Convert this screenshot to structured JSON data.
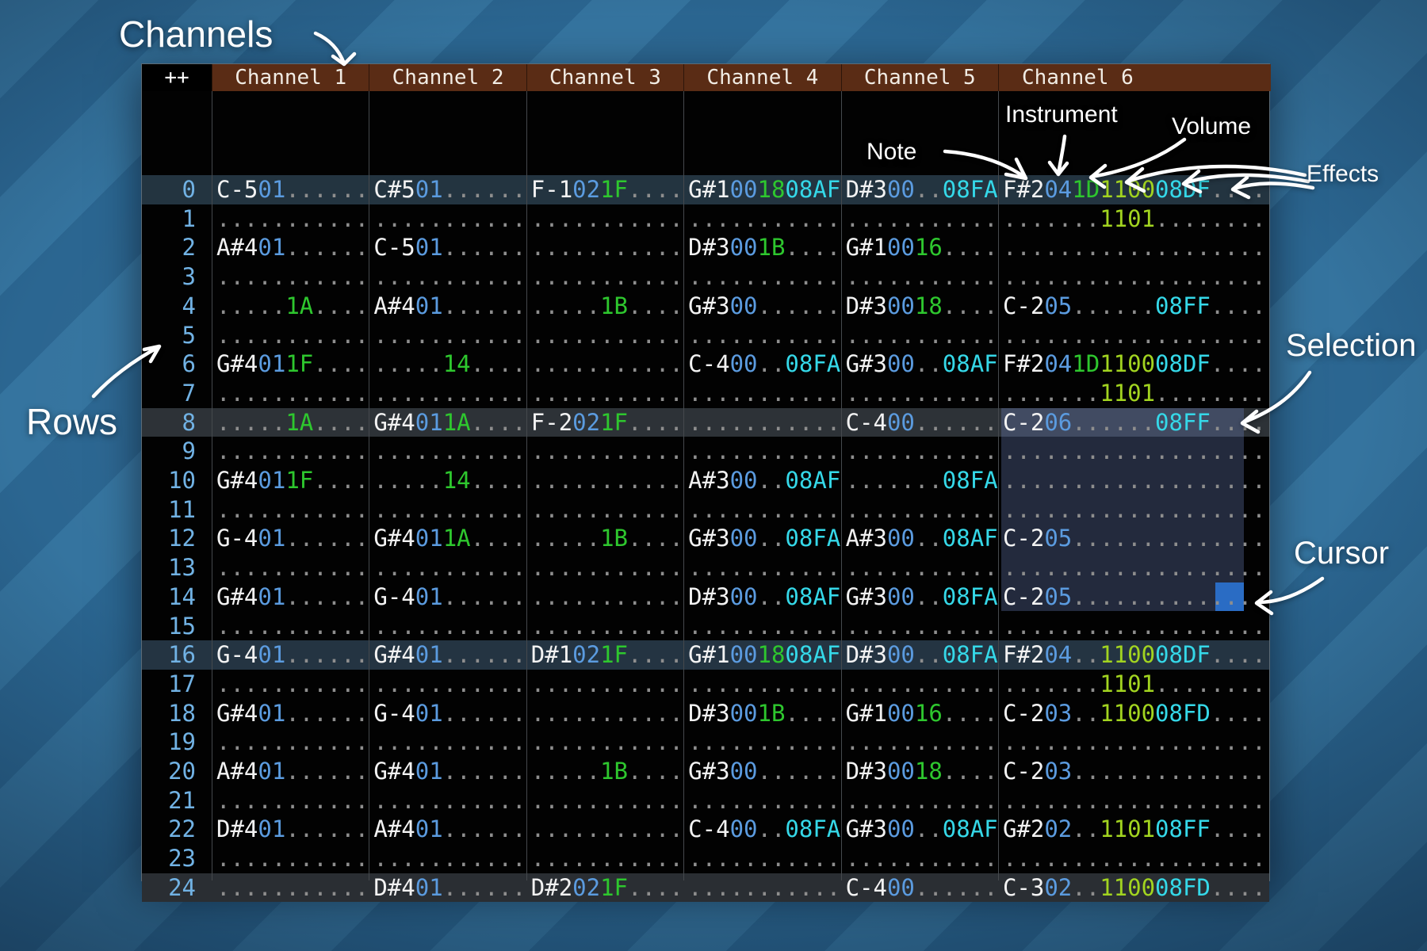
{
  "annotations": {
    "channels": "Channels",
    "rows": "Rows",
    "note": "Note",
    "instrument": "Instrument",
    "volume": "Volume",
    "effects": "Effects",
    "selection": "Selection",
    "cursor": "Cursor"
  },
  "header": {
    "corner": "++",
    "channels": [
      "Channel 1",
      "Channel 2",
      "Channel 3",
      "Channel 4",
      "Channel 5",
      "Channel 6"
    ]
  },
  "colors": {
    "note": "#f2f2f2",
    "instrument": "#5b9bdf",
    "volume": "#2ec72e",
    "effect_primary": "#a2d420",
    "effect_secondary": "#35d8e8",
    "blank_dots": "#8e8e8e",
    "row_number": "#71b2e4",
    "header_bg": "#5a2c15",
    "highlight_row_major": "#233440",
    "highlight_row_mid": "#2d3237",
    "highlight_row_16": "#243442",
    "highlight_row_24": "#2a2e33",
    "selection_fill": "rgba(112,136,198,0.30)",
    "cursor_fill": "#2a6cc4"
  },
  "pattern": {
    "highlight_rows": [
      0,
      8,
      16,
      24
    ],
    "selection": {
      "channel": 6,
      "row_start": 8,
      "row_end": 14
    },
    "cursor": {
      "row": 14,
      "channel": 6,
      "column": "effect3"
    },
    "rows": [
      {
        "n": "0",
        "cells": [
          "C-5|01|..|....",
          "C#5|01|..|....",
          "F-1|02|1F|....",
          "G#1|00|18|08AF",
          "D#3|00|..|08FA",
          "F#2|04|1D|1100|08DF|...."
        ]
      },
      {
        "n": "1",
        "cells": [
          "...|..|..|....",
          "...|..|..|....",
          "...|..|..|....",
          "...|..|..|....",
          "...|..|..|....",
          "...|..|..|1101|....|...."
        ]
      },
      {
        "n": "2",
        "cells": [
          "A#4|01|..|....",
          "C-5|01|..|....",
          "...|..|..|....",
          "D#3|00|1B|....",
          "G#1|00|16|....",
          "...|..|..|....|....|...."
        ]
      },
      {
        "n": "3",
        "cells": [
          "...|..|..|....",
          "...|..|..|....",
          "...|..|..|....",
          "...|..|..|....",
          "...|..|..|....",
          "...|..|..|....|....|...."
        ]
      },
      {
        "n": "4",
        "cells": [
          "...|..|1A|....",
          "A#4|01|..|....",
          "...|..|1B|....",
          "G#3|00|..|....",
          "D#3|00|18|....",
          "C-2|05|..|....|08FF|...."
        ]
      },
      {
        "n": "5",
        "cells": [
          "...|..|..|....",
          "...|..|..|....",
          "...|..|..|....",
          "...|..|..|....",
          "...|..|..|....",
          "...|..|..|....|....|...."
        ]
      },
      {
        "n": "6",
        "cells": [
          "G#4|01|1F|....",
          "...|..|14|....",
          "...|..|..|....",
          "C-4|00|..|08FA",
          "G#3|00|..|08AF",
          "F#2|04|1D|1100|08DF|...."
        ]
      },
      {
        "n": "7",
        "cells": [
          "...|..|..|....",
          "...|..|..|....",
          "...|..|..|....",
          "...|..|..|....",
          "...|..|..|....",
          "...|..|..|1101|....|...."
        ]
      },
      {
        "n": "8",
        "cells": [
          "...|..|1A|....",
          "G#4|01|1A|....",
          "F-2|02|1F|....",
          "...|..|..|....",
          "C-4|00|..|....",
          "C-2|06|..|....|08FF|...."
        ]
      },
      {
        "n": "9",
        "cells": [
          "...|..|..|....",
          "...|..|..|....",
          "...|..|..|....",
          "...|..|..|....",
          "...|..|..|....",
          "...|..|..|....|....|...."
        ]
      },
      {
        "n": "10",
        "cells": [
          "G#4|01|1F|....",
          "...|..|14|....",
          "...|..|..|....",
          "A#3|00|..|08AF",
          "...|..|..|08FA",
          "...|..|..|....|....|...."
        ]
      },
      {
        "n": "11",
        "cells": [
          "...|..|..|....",
          "...|..|..|....",
          "...|..|..|....",
          "...|..|..|....",
          "...|..|..|....",
          "...|..|..|....|....|...."
        ]
      },
      {
        "n": "12",
        "cells": [
          "G-4|01|..|....",
          "G#4|01|1A|....",
          "...|..|1B|....",
          "G#3|00|..|08FA",
          "A#3|00|..|08AF",
          "C-2|05|..|....|....|...."
        ]
      },
      {
        "n": "13",
        "cells": [
          "...|..|..|....",
          "...|..|..|....",
          "...|..|..|....",
          "...|..|..|....",
          "...|..|..|....",
          "...|..|..|....|....|...."
        ]
      },
      {
        "n": "14",
        "cells": [
          "G#4|01|..|....",
          "G-4|01|..|....",
          "...|..|..|....",
          "D#3|00|..|08AF",
          "G#3|00|..|08FA",
          "C-2|05|..|....|....|...."
        ]
      },
      {
        "n": "15",
        "cells": [
          "...|..|..|....",
          "...|..|..|....",
          "...|..|..|....",
          "...|..|..|....",
          "...|..|..|....",
          "...|..|..|....|....|...."
        ]
      },
      {
        "n": "16",
        "cells": [
          "G-4|01|..|....",
          "G#4|01|..|....",
          "D#1|02|1F|....",
          "G#1|00|18|08AF",
          "D#3|00|..|08FA",
          "F#2|04|..|1100|08DF|...."
        ]
      },
      {
        "n": "17",
        "cells": [
          "...|..|..|....",
          "...|..|..|....",
          "...|..|..|....",
          "...|..|..|....",
          "...|..|..|....",
          "...|..|..|1101|....|...."
        ]
      },
      {
        "n": "18",
        "cells": [
          "G#4|01|..|....",
          "G-4|01|..|....",
          "...|..|..|....",
          "D#3|00|1B|....",
          "G#1|00|16|....",
          "C-2|03|..|1100|08FD|...."
        ]
      },
      {
        "n": "19",
        "cells": [
          "...|..|..|....",
          "...|..|..|....",
          "...|..|..|....",
          "...|..|..|....",
          "...|..|..|....",
          "...|..|..|....|....|...."
        ]
      },
      {
        "n": "20",
        "cells": [
          "A#4|01|..|....",
          "G#4|01|..|....",
          "...|..|1B|....",
          "G#3|00|..|....",
          "D#3|00|18|....",
          "C-2|03|..|....|....|...."
        ]
      },
      {
        "n": "21",
        "cells": [
          "...|..|..|....",
          "...|..|..|....",
          "...|..|..|....",
          "...|..|..|....",
          "...|..|..|....",
          "...|..|..|....|....|...."
        ]
      },
      {
        "n": "22",
        "cells": [
          "D#4|01|..|....",
          "A#4|01|..|....",
          "...|..|..|....",
          "C-4|00|..|08FA",
          "G#3|00|..|08AF",
          "G#2|02|..|1101|08FF|...."
        ]
      },
      {
        "n": "23",
        "cells": [
          "...|..|..|....",
          "...|..|..|....",
          "...|..|..|....",
          "...|..|..|....",
          "...|..|..|....",
          "...|..|..|....|....|...."
        ]
      },
      {
        "n": "24",
        "cells": [
          "...|..|..|....",
          "D#4|01|..|....",
          "D#2|02|1F|....",
          "...|..|..|....",
          "C-4|00|..|....",
          "C-3|02|..|1100|08FD|...."
        ]
      }
    ]
  }
}
